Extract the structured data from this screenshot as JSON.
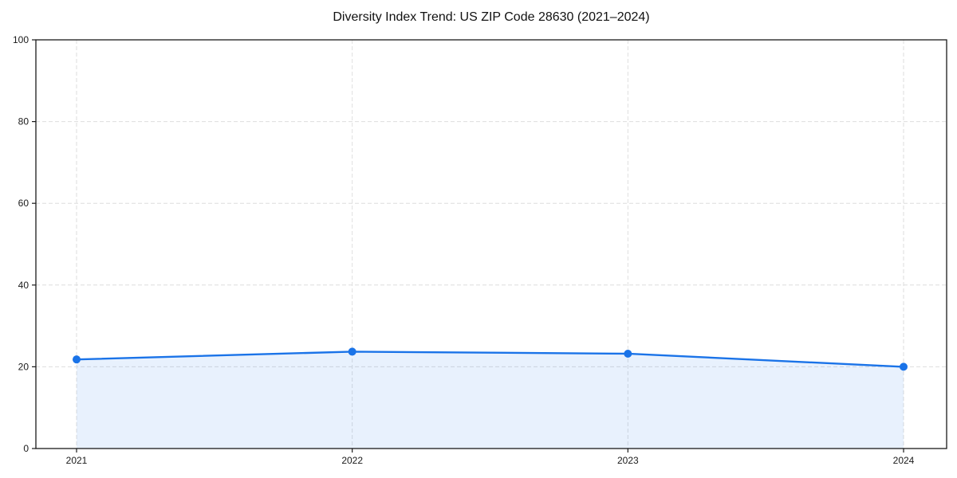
{
  "chart_data": {
    "type": "area",
    "title": "Diversity Index Trend: US ZIP Code 28630 (2021–2024)",
    "categories": [
      "2021",
      "2022",
      "2023",
      "2024"
    ],
    "values": [
      21.8,
      23.7,
      23.2,
      20.0
    ],
    "series": [
      {
        "name": "Diversity Index",
        "values": [
          21.8,
          23.7,
          23.2,
          20.0
        ]
      }
    ],
    "xlabel": "",
    "ylabel": "",
    "ylim": [
      0,
      100
    ],
    "yticks": [
      0,
      20,
      40,
      60,
      80,
      100
    ],
    "grid": "dashed, both axes, light gray",
    "legend": "none",
    "marker": "circle",
    "frame": "full box",
    "colors": {
      "line": "#1a73e8",
      "marker": "#1a73e8",
      "area_fill": "rgba(26,115,232,0.10)",
      "grid": "#dedede",
      "axis": "#1a1a1a",
      "tick_label": "#1a1a1a",
      "title": "#111111",
      "background": "#ffffff"
    }
  }
}
